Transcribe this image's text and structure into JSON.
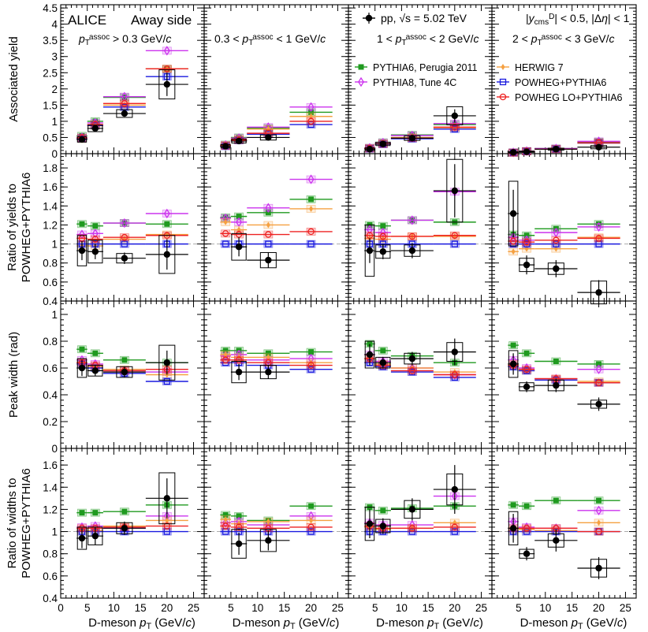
{
  "chart_data": {
    "type": "scatter",
    "title": "",
    "experiment_label": "ALICE",
    "side_label": "Away side",
    "xlabel": "D-meson p_T (GeV/c)",
    "xlim": [
      0,
      27
    ],
    "xticks": [
      "0",
      "5",
      "10",
      "15",
      "20",
      "25"
    ],
    "kinematic_label": "|y^D_cms| < 0.5, |Δη| < 1",
    "columns": [
      {
        "label": "p_T^assoc > 0.3 GeV/c"
      },
      {
        "label": "0.3 < p_T^assoc < 1 GeV/c"
      },
      {
        "label": "1 < p_T^assoc < 2 GeV/c"
      },
      {
        "label": "2 < p_T^assoc < 3 GeV/c"
      }
    ],
    "rows": [
      {
        "ylabel_lines": [
          "Associated yield"
        ],
        "ylim": [
          0,
          4.6
        ],
        "yticks": [
          0,
          0.5,
          1,
          1.5,
          2,
          2.5,
          3,
          3.5,
          4,
          4.5
        ],
        "ytick_labels": [
          "0",
          "0.5",
          "1",
          "1.5",
          "2",
          "2.5",
          "3",
          "3.5",
          "4",
          "4.5"
        ]
      },
      {
        "ylabel_lines": [
          "Ratio of yields to",
          "POWHEG+PYTHIA6"
        ],
        "ylim": [
          0.4,
          1.95
        ],
        "yticks": [
          0.4,
          0.6,
          0.8,
          1.0,
          1.2,
          1.4,
          1.6,
          1.8
        ],
        "ytick_labels": [
          "0.4",
          "0.6",
          "0.8",
          "1",
          "1.2",
          "1.4",
          "1.6",
          "1.8"
        ],
        "ref_line": 1.0
      },
      {
        "ylabel_lines": [
          "Peak width (rad)"
        ],
        "ylim": [
          0,
          1.1
        ],
        "yticks": [
          0,
          0.2,
          0.4,
          0.6,
          0.8,
          1.0
        ],
        "ytick_labels": [
          "0",
          "0.2",
          "0.4",
          "0.6",
          "0.8",
          "1"
        ]
      },
      {
        "ylabel_lines": [
          "Ratio of widths to",
          "POWHEG+PYTHIA6"
        ],
        "ylim": [
          0.4,
          1.75
        ],
        "yticks": [
          0.4,
          0.6,
          0.8,
          1.0,
          1.2,
          1.4,
          1.6
        ],
        "ytick_labels": [
          "0.4",
          "0.6",
          "0.8",
          "1",
          "1.2",
          "1.4",
          "1.6"
        ],
        "ref_line": 1.0
      }
    ],
    "bins": [
      {
        "center": 4,
        "low": 3,
        "high": 5
      },
      {
        "center": 6.5,
        "low": 5,
        "high": 8
      },
      {
        "center": 12,
        "low": 8,
        "high": 16
      },
      {
        "center": 20,
        "low": 16,
        "high": 24
      }
    ],
    "legend": [
      {
        "name": "pp, √s = 5.02 TeV",
        "key": "data"
      },
      {
        "name": "PYTHIA6, Perugia 2011",
        "key": "pythia6"
      },
      {
        "name": "PYTHIA8, Tune 4C",
        "key": "pythia8"
      },
      {
        "name": "HERWIG 7",
        "key": "herwig"
      },
      {
        "name": "POWHEG+PYTHIA6",
        "key": "powheg"
      },
      {
        "name": "POWHEG LO+PYTHIA6",
        "key": "powheglo"
      }
    ],
    "colors": {
      "data": "#000000",
      "pythia6": "#1f9a1f",
      "pythia8": "#cc33ee",
      "herwig": "#f5a040",
      "powheg": "#1a1adf",
      "powheglo": "#ee2222",
      "ref_line": "#aaaaaa"
    },
    "series": [
      {
        "row": 0,
        "col": 0,
        "data": {
          "values": [
            0.44,
            0.78,
            1.24,
            2.14
          ],
          "stat": [
            0.06,
            0.06,
            0.07,
            0.36
          ],
          "syst": [
            0.08,
            0.1,
            0.12,
            0.45
          ]
        },
        "pythia6": [
          0.55,
          1.0,
          1.74,
          2.62
        ],
        "pythia8": [
          0.5,
          0.95,
          1.76,
          3.18
        ],
        "herwig": [
          0.45,
          0.86,
          1.5,
          2.62
        ],
        "powheg": [
          0.46,
          0.87,
          1.44,
          2.38
        ],
        "powheglo": [
          0.49,
          0.9,
          1.55,
          2.62
        ]
      },
      {
        "row": 0,
        "col": 1,
        "data": {
          "values": [
            0.23,
            0.39,
            0.5,
            null
          ],
          "stat": [
            0.04,
            0.05,
            0.06,
            0
          ],
          "syst": [
            0.05,
            0.06,
            0.08,
            0
          ]
        },
        "pythia6": [
          0.28,
          0.5,
          0.79,
          1.28
        ],
        "pythia8": [
          0.27,
          0.48,
          0.82,
          1.44
        ],
        "herwig": [
          0.26,
          0.45,
          0.76,
          1.15
        ],
        "powheg": [
          0.23,
          0.41,
          0.6,
          0.9
        ],
        "powheglo": [
          0.24,
          0.42,
          0.63,
          1.0
        ]
      },
      {
        "row": 0,
        "col": 2,
        "data": {
          "values": [
            0.14,
            0.3,
            0.48,
            1.17
          ],
          "stat": [
            0.03,
            0.04,
            0.05,
            0.2
          ],
          "syst": [
            0.04,
            0.05,
            0.07,
            0.28
          ]
        },
        "pythia6": [
          0.18,
          0.35,
          0.58,
          0.9
        ],
        "pythia8": [
          0.18,
          0.34,
          0.56,
          0.93
        ],
        "herwig": [
          0.16,
          0.31,
          0.5,
          0.8
        ],
        "powheg": [
          0.15,
          0.29,
          0.46,
          0.76
        ],
        "powheglo": [
          0.16,
          0.3,
          0.48,
          0.82
        ]
      },
      {
        "row": 0,
        "col": 3,
        "data": {
          "values": [
            0.04,
            0.06,
            0.14,
            0.2
          ],
          "stat": [
            0.02,
            0.02,
            0.03,
            0.07
          ],
          "syst": [
            0.02,
            0.02,
            0.03,
            0.05
          ]
        },
        "pythia6": [
          0.04,
          0.08,
          0.16,
          0.37
        ],
        "pythia8": [
          0.04,
          0.08,
          0.16,
          0.38
        ],
        "herwig": [
          0.03,
          0.07,
          0.14,
          0.32
        ],
        "powheg": [
          0.03,
          0.07,
          0.14,
          0.33
        ],
        "powheglo": [
          0.03,
          0.07,
          0.14,
          0.34
        ]
      },
      {
        "row": 1,
        "col": 0,
        "data": {
          "values": [
            0.93,
            0.92,
            0.85,
            0.89
          ],
          "stat": [
            0.1,
            0.08,
            0.06,
            0.16
          ],
          "syst": [
            0.16,
            0.12,
            0.05,
            0.2
          ]
        },
        "pythia6": [
          1.21,
          1.19,
          1.22,
          1.21
        ],
        "pythia8": [
          1.1,
          1.11,
          1.22,
          1.32
        ],
        "herwig": [
          0.98,
          0.98,
          1.05,
          1.1
        ],
        "powheg": [
          1.0,
          1.0,
          1.0,
          1.0
        ],
        "powheglo": [
          1.06,
          1.05,
          1.07,
          1.09
        ]
      },
      {
        "row": 1,
        "col": 1,
        "data": {
          "values": [
            null,
            0.97,
            0.83,
            null
          ],
          "stat": [
            0,
            0.1,
            0.08,
            0
          ],
          "syst": [
            0,
            0.14,
            0.08,
            0
          ]
        },
        "pythia6": [
          1.28,
          1.29,
          1.33,
          1.47
        ],
        "pythia8": [
          1.27,
          1.23,
          1.38,
          1.68
        ],
        "herwig": [
          1.23,
          1.15,
          1.2,
          1.37
        ],
        "powheg": [
          1.0,
          1.0,
          1.0,
          1.0
        ],
        "powheglo": [
          1.11,
          1.1,
          1.1,
          1.13
        ]
      },
      {
        "row": 1,
        "col": 2,
        "data": {
          "values": [
            0.93,
            0.92,
            0.93,
            1.56
          ],
          "stat": [
            0.13,
            0.08,
            0.08,
            0.28
          ],
          "syst": [
            0.27,
            0.07,
            0.06,
            0.33
          ]
        },
        "pythia6": [
          1.2,
          1.19,
          1.25,
          1.23
        ],
        "pythia8": [
          1.15,
          1.12,
          1.25,
          1.55
        ],
        "herwig": [
          1.06,
          1.05,
          1.08,
          1.08
        ],
        "powheg": [
          1.0,
          1.0,
          1.0,
          1.0
        ],
        "powheglo": [
          1.09,
          1.08,
          1.08,
          1.09
        ]
      },
      {
        "row": 1,
        "col": 3,
        "data": {
          "values": [
            1.32,
            0.78,
            0.74,
            0.49
          ],
          "stat": [
            0.25,
            0.1,
            0.09,
            0.13
          ],
          "syst": [
            0.34,
            0.07,
            0.06,
            0.12
          ]
        },
        "pythia6": [
          1.1,
          1.09,
          1.16,
          1.21
        ],
        "pythia8": [
          1.07,
          1.04,
          1.12,
          1.18
        ],
        "herwig": [
          0.92,
          0.95,
          0.95,
          1.07
        ],
        "powheg": [
          1.0,
          1.0,
          1.0,
          1.0
        ],
        "powheglo": [
          1.03,
          1.02,
          1.04,
          1.06
        ]
      },
      {
        "row": 2,
        "col": 0,
        "data": {
          "values": [
            0.6,
            0.58,
            0.57,
            0.64
          ],
          "stat": [
            0.06,
            0.04,
            0.04,
            0.09
          ],
          "syst": [
            0.07,
            0.04,
            0.04,
            0.13
          ]
        },
        "pythia6": [
          0.74,
          0.71,
          0.66,
          0.64
        ],
        "pythia8": [
          0.66,
          0.63,
          0.58,
          0.57
        ],
        "herwig": [
          0.64,
          0.61,
          0.59,
          0.55
        ],
        "powheg": [
          0.63,
          0.6,
          0.56,
          0.5
        ],
        "powheglo": [
          0.64,
          0.62,
          0.58,
          0.59
        ]
      },
      {
        "row": 2,
        "col": 1,
        "data": {
          "values": [
            null,
            0.57,
            0.57,
            null
          ],
          "stat": [
            0,
            0.06,
            0.05,
            0
          ],
          "syst": [
            0,
            0.08,
            0.05,
            0
          ]
        },
        "pythia6": [
          0.73,
          0.73,
          0.71,
          0.72
        ],
        "pythia8": [
          0.69,
          0.7,
          0.66,
          0.67
        ],
        "herwig": [
          0.7,
          0.68,
          0.68,
          0.64
        ],
        "powheg": [
          0.64,
          0.64,
          0.62,
          0.59
        ],
        "powheglo": [
          0.66,
          0.66,
          0.64,
          0.62
        ]
      },
      {
        "row": 2,
        "col": 2,
        "data": {
          "values": [
            0.7,
            0.64,
            0.67,
            0.72
          ],
          "stat": [
            0.08,
            0.04,
            0.05,
            0.1
          ],
          "syst": [
            0.1,
            0.04,
            0.04,
            0.07
          ]
        },
        "pythia6": [
          0.78,
          0.73,
          0.69,
          0.64
        ],
        "pythia8": [
          0.7,
          0.65,
          0.6,
          0.55
        ],
        "herwig": [
          0.67,
          0.63,
          0.6,
          0.57
        ],
        "powheg": [
          0.64,
          0.61,
          0.57,
          0.53
        ],
        "powheglo": [
          0.67,
          0.62,
          0.58,
          0.55
        ]
      },
      {
        "row": 2,
        "col": 3,
        "data": {
          "values": [
            0.63,
            0.46,
            0.47,
            0.33
          ],
          "stat": [
            0.08,
            0.04,
            0.05,
            0.05
          ],
          "syst": [
            0.1,
            0.03,
            0.04,
            0.03
          ]
        },
        "pythia6": [
          0.77,
          0.71,
          0.65,
          0.63
        ],
        "pythia8": [
          0.66,
          0.6,
          0.52,
          0.59
        ],
        "herwig": [
          0.63,
          0.58,
          0.52,
          0.5
        ],
        "powheg": [
          0.61,
          0.58,
          0.51,
          0.49
        ],
        "powheglo": [
          0.62,
          0.59,
          0.52,
          0.49
        ]
      },
      {
        "row": 3,
        "col": 0,
        "data": {
          "values": [
            0.94,
            0.96,
            1.03,
            1.3
          ],
          "stat": [
            0.09,
            0.08,
            0.06,
            0.18
          ],
          "syst": [
            0.1,
            0.08,
            0.05,
            0.23
          ]
        },
        "pythia6": [
          1.17,
          1.17,
          1.18,
          1.24
        ],
        "pythia8": [
          1.04,
          1.05,
          1.03,
          1.14
        ],
        "herwig": [
          1.01,
          1.01,
          1.05,
          1.1
        ],
        "powheg": [
          1.0,
          1.0,
          1.0,
          1.0
        ],
        "powheglo": [
          1.03,
          1.03,
          1.04,
          1.05
        ]
      },
      {
        "row": 3,
        "col": 1,
        "data": {
          "values": [
            null,
            0.89,
            0.92,
            null
          ],
          "stat": [
            0,
            0.1,
            0.09,
            0
          ],
          "syst": [
            0,
            0.13,
            0.1,
            0
          ]
        },
        "pythia6": [
          1.15,
          1.14,
          1.1,
          1.23
        ],
        "pythia8": [
          1.08,
          1.09,
          1.06,
          1.14
        ],
        "herwig": [
          1.11,
          1.07,
          1.09,
          1.1
        ],
        "powheg": [
          1.0,
          1.0,
          1.0,
          1.0
        ],
        "powheglo": [
          1.05,
          1.04,
          1.03,
          1.04
        ]
      },
      {
        "row": 3,
        "col": 2,
        "data": {
          "values": [
            1.07,
            1.05,
            1.2,
            1.38
          ],
          "stat": [
            0.13,
            0.07,
            0.1,
            0.22
          ],
          "syst": [
            0.15,
            0.06,
            0.08,
            0.14
          ]
        },
        "pythia6": [
          1.22,
          1.19,
          1.21,
          1.23
        ],
        "pythia8": [
          1.08,
          1.06,
          1.06,
          1.32
        ],
        "herwig": [
          1.04,
          1.02,
          1.03,
          1.08
        ],
        "powheg": [
          1.0,
          1.0,
          1.0,
          1.0
        ],
        "powheglo": [
          1.05,
          1.03,
          1.03,
          1.04
        ]
      },
      {
        "row": 3,
        "col": 3,
        "data": {
          "values": [
            1.03,
            0.8,
            0.92,
            0.67
          ],
          "stat": [
            0.13,
            0.06,
            0.1,
            0.1
          ],
          "syst": [
            0.15,
            0.04,
            0.06,
            0.08
          ]
        },
        "pythia6": [
          1.24,
          1.23,
          1.28,
          1.28
        ],
        "pythia8": [
          1.09,
          1.04,
          1.03,
          1.19
        ],
        "herwig": [
          1.01,
          1.02,
          1.01,
          1.08
        ],
        "powheg": [
          1.0,
          1.0,
          1.0,
          1.0
        ],
        "powheglo": [
          1.03,
          1.03,
          1.03,
          1.0
        ]
      }
    ]
  }
}
